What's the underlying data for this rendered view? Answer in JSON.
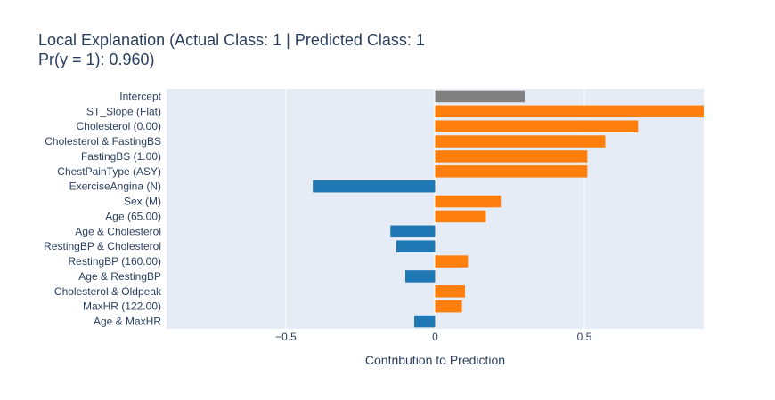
{
  "chart_data": {
    "type": "bar",
    "orientation": "horizontal",
    "title_line1": "Local Explanation (Actual Class: 1 | Predicted Class: 1",
    "title_line2": "Pr(y = 1): 0.960)",
    "xlabel": "Contribution to Prediction",
    "ylabel": "",
    "xlim": [
      -0.9,
      0.9
    ],
    "xticks": [
      {
        "value": -0.5,
        "label": "−0.5"
      },
      {
        "value": 0,
        "label": "0"
      },
      {
        "value": 0.5,
        "label": "0.5"
      }
    ],
    "grid": true,
    "colors": {
      "positive": "#ff7f0e",
      "negative": "#1f77b4",
      "intercept": "#808080",
      "plot_bg": "#e5ecf6"
    },
    "categories": [
      "Intercept",
      "ST_Slope (Flat)",
      "Cholesterol (0.00)",
      "Cholesterol & FastingBS",
      "FastingBS (1.00)",
      "ChestPainType (ASY)",
      "ExerciseAngina (N)",
      "Sex (M)",
      "Age (65.00)",
      "Age & Cholesterol",
      "RestingBP & Cholesterol",
      "RestingBP (160.00)",
      "Age & RestingBP",
      "Cholesterol & Oldpeak",
      "MaxHR (122.00)",
      "Age & MaxHR"
    ],
    "values": [
      0.3,
      0.93,
      0.68,
      0.57,
      0.51,
      0.51,
      -0.41,
      0.22,
      0.17,
      -0.15,
      -0.13,
      0.11,
      -0.1,
      0.1,
      0.09,
      -0.07
    ]
  }
}
